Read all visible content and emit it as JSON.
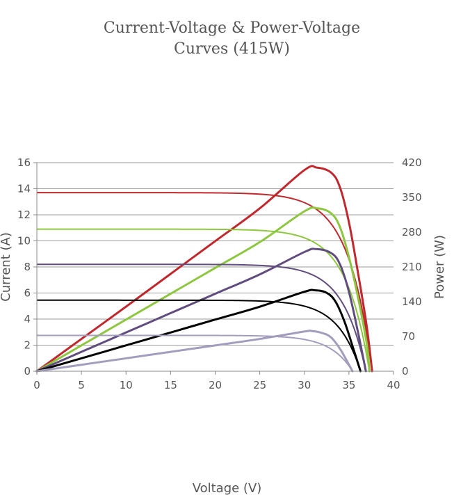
{
  "chart_data": {
    "type": "line",
    "title_line1": "Current-Voltage & Power-Voltage",
    "title_line2": "Curves (415W)",
    "xlabel": "Voltage (V)",
    "ylabel_left": "Current (A)",
    "ylabel_right": "Power (W)",
    "xlim": [
      0,
      40
    ],
    "ylim_left": [
      0,
      16
    ],
    "ylim_right": [
      0,
      420
    ],
    "x_ticks": [
      "0",
      "5",
      "10",
      "15",
      "20",
      "25",
      "30",
      "35",
      "40"
    ],
    "y_ticks_left": [
      "0",
      "2",
      "4",
      "6",
      "8",
      "10",
      "12",
      "14",
      "16"
    ],
    "y_ticks_right": [
      "0",
      "70",
      "140",
      "210",
      "280",
      "350",
      "420"
    ],
    "grid": true,
    "series": [
      {
        "color": "#c0282d",
        "isc": 13.7,
        "voc": 37.6,
        "vmp": 31.4,
        "pmax": 410,
        "pv_points": [
          [
            0,
            0
          ],
          [
            5,
            65
          ],
          [
            10,
            130
          ],
          [
            15,
            196
          ],
          [
            20,
            262
          ],
          [
            25,
            328
          ],
          [
            30,
            405
          ],
          [
            31.4,
            410
          ],
          [
            33,
            400
          ],
          [
            34,
            370
          ],
          [
            35,
            300
          ],
          [
            36,
            200
          ],
          [
            37,
            90
          ],
          [
            37.6,
            0
          ]
        ]
      },
      {
        "color": "#8dc63f",
        "isc": 10.9,
        "voc": 37.3,
        "vmp": 31.5,
        "pmax": 328,
        "pv_points": [
          [
            0,
            0
          ],
          [
            5,
            52
          ],
          [
            10,
            104
          ],
          [
            15,
            156
          ],
          [
            20,
            208
          ],
          [
            25,
            260
          ],
          [
            30,
            322
          ],
          [
            31.5,
            328
          ],
          [
            33,
            318
          ],
          [
            34,
            290
          ],
          [
            35,
            230
          ],
          [
            36,
            150
          ],
          [
            37,
            55
          ],
          [
            37.3,
            0
          ]
        ]
      },
      {
        "color": "#604c7e",
        "isc": 8.2,
        "voc": 36.9,
        "vmp": 31.3,
        "pmax": 246,
        "pv_points": [
          [
            0,
            0
          ],
          [
            5,
            39
          ],
          [
            10,
            78
          ],
          [
            15,
            117
          ],
          [
            20,
            156
          ],
          [
            25,
            195
          ],
          [
            30,
            240
          ],
          [
            31.3,
            246
          ],
          [
            33,
            238
          ],
          [
            34,
            215
          ],
          [
            35,
            160
          ],
          [
            36,
            80
          ],
          [
            36.9,
            0
          ]
        ]
      },
      {
        "color": "#000000",
        "isc": 5.45,
        "voc": 36.3,
        "vmp": 31.2,
        "pmax": 163,
        "pv_points": [
          [
            0,
            0
          ],
          [
            5,
            26
          ],
          [
            10,
            52
          ],
          [
            15,
            78
          ],
          [
            20,
            104
          ],
          [
            25,
            130
          ],
          [
            30,
            160
          ],
          [
            31.2,
            163
          ],
          [
            32.5,
            158
          ],
          [
            33.5,
            140
          ],
          [
            34.5,
            100
          ],
          [
            35.5,
            45
          ],
          [
            36.3,
            0
          ]
        ]
      },
      {
        "color": "#a39cbc",
        "isc": 2.75,
        "voc": 35.4,
        "vmp": 30.8,
        "pmax": 81,
        "pv_points": [
          [
            0,
            0
          ],
          [
            5,
            13
          ],
          [
            10,
            26
          ],
          [
            15,
            39
          ],
          [
            20,
            52
          ],
          [
            25,
            65
          ],
          [
            30,
            80
          ],
          [
            30.8,
            81
          ],
          [
            32,
            77
          ],
          [
            33,
            68
          ],
          [
            34,
            45
          ],
          [
            34.8,
            20
          ],
          [
            35.4,
            0
          ]
        ]
      }
    ]
  }
}
